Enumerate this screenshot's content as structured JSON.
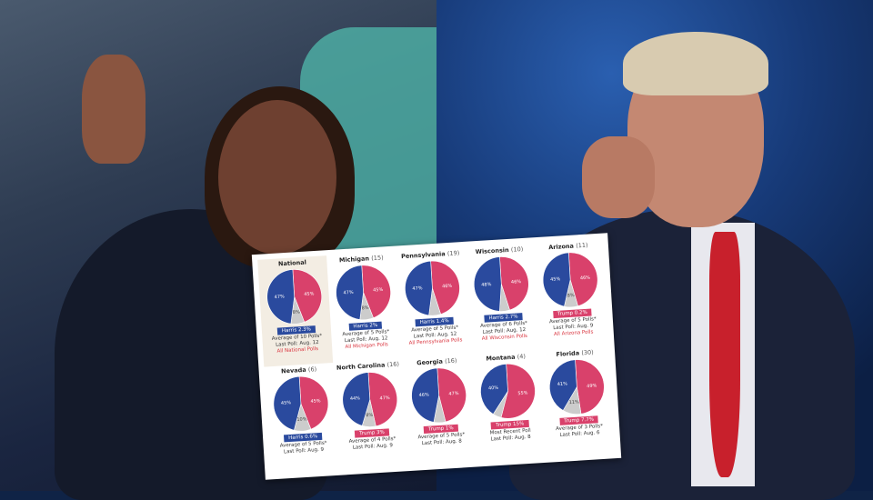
{
  "colors": {
    "harris": "#2a4a9e",
    "trump": "#d9416b",
    "undecided": "#cccccc"
  },
  "chart_data": {
    "type": "pie",
    "charts": [
      {
        "state": "National",
        "ev": "",
        "values": [
          47,
          45,
          8
        ],
        "labels": [
          "47%",
          "45%",
          "8%"
        ],
        "lead": "Harris 2.3%",
        "leader": "harris",
        "avg": "Average of 10 Polls*",
        "last": "Last Poll: Aug. 12",
        "link": "All National Polls"
      },
      {
        "state": "Michigan",
        "ev": "(15)",
        "values": [
          47,
          45,
          8
        ],
        "labels": [
          "47%",
          "45%",
          "8%"
        ],
        "lead": "Harris 2%",
        "leader": "harris",
        "avg": "Average of 5 Polls*",
        "last": "Last Poll: Aug. 12",
        "link": "All Michigan Polls"
      },
      {
        "state": "Pennsylvania",
        "ev": "(19)",
        "values": [
          47,
          46,
          7
        ],
        "labels": [
          "47%",
          "46%",
          ""
        ],
        "lead": "Harris 1.4%",
        "leader": "harris",
        "avg": "Average of 5 Polls*",
        "last": "Last Poll: Aug. 12",
        "link": "All Pennsylvania Polls"
      },
      {
        "state": "Wisconsin",
        "ev": "(10)",
        "values": [
          48,
          46,
          6
        ],
        "labels": [
          "48%",
          "46%",
          ""
        ],
        "lead": "Harris 2.7%",
        "leader": "harris",
        "avg": "Average of 6 Polls*",
        "last": "Last Poll: Aug. 12",
        "link": "All Wisconsin Polls"
      },
      {
        "state": "Arizona",
        "ev": "(11)",
        "values": [
          45,
          46,
          8
        ],
        "labels": [
          "45%",
          "46%",
          "8%"
        ],
        "lead": "Trump 0.2%",
        "leader": "trump",
        "avg": "Average of 5 Polls*",
        "last": "Last Poll: Aug. 9",
        "link": "All Arizona Polls"
      },
      {
        "state": "Nevada",
        "ev": "(6)",
        "values": [
          45,
          45,
          10
        ],
        "labels": [
          "45%",
          "45%",
          "10%"
        ],
        "lead": "Harris 0.6%",
        "leader": "harris",
        "avg": "Average of 5 Polls*",
        "last": "Last Poll: Aug. 9",
        "link": ""
      },
      {
        "state": "North Carolina",
        "ev": "(16)",
        "values": [
          44,
          47,
          8
        ],
        "labels": [
          "44%",
          "47%",
          "8%"
        ],
        "lead": "Trump 3%",
        "leader": "trump",
        "avg": "Average of 4 Polls*",
        "last": "Last Poll: Aug. 9",
        "link": ""
      },
      {
        "state": "Georgia",
        "ev": "(16)",
        "values": [
          46,
          47,
          7
        ],
        "labels": [
          "46%",
          "47%",
          ""
        ],
        "lead": "Trump 1%",
        "leader": "trump",
        "avg": "Average of 5 Polls*",
        "last": "Last Poll: Aug. 8",
        "link": ""
      },
      {
        "state": "Montana",
        "ev": "(4)",
        "values": [
          40,
          55,
          5
        ],
        "labels": [
          "40%",
          "55%",
          ""
        ],
        "lead": "Trump 15%",
        "leader": "trump",
        "avg": "Most Recent Poll",
        "last": "Last Poll: Aug. 8",
        "link": ""
      },
      {
        "state": "Florida",
        "ev": "(30)",
        "values": [
          41,
          49,
          11
        ],
        "labels": [
          "41%",
          "49%",
          "11%"
        ],
        "lead": "Trump 7.7%",
        "leader": "trump",
        "avg": "Average of 3 Polls*",
        "last": "Last Poll: Aug. 6",
        "link": ""
      }
    ]
  }
}
